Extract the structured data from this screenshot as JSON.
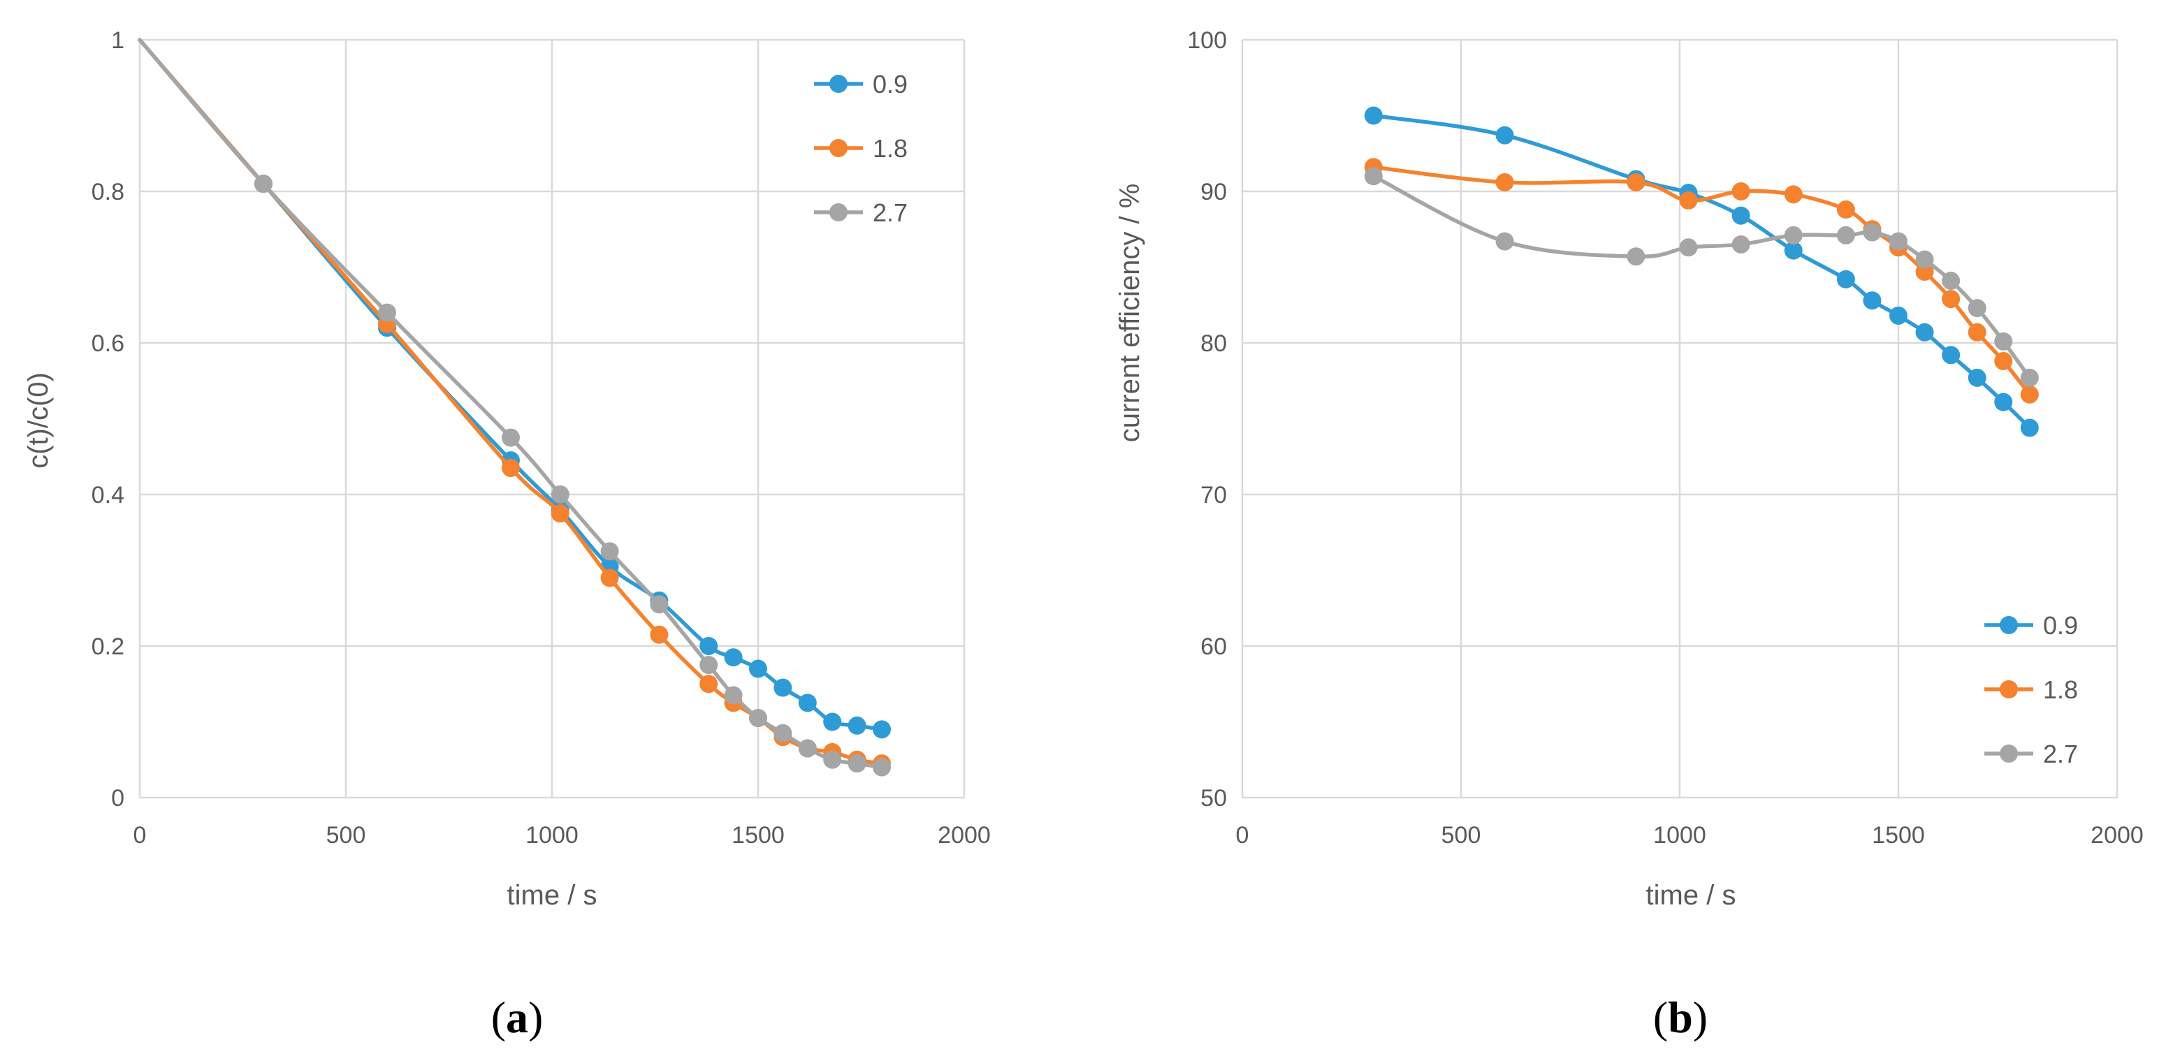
{
  "chart_data": [
    {
      "type": "line",
      "panel": "a",
      "caption": {
        "open": "(",
        "letter": "a",
        "close": ")"
      },
      "xlabel": "time / s",
      "ylabel": "c(t)/c(0)",
      "xlim": [
        0,
        2000
      ],
      "ylim": [
        0,
        1
      ],
      "xticks": [
        0,
        500,
        1000,
        1500,
        2000
      ],
      "yticks": [
        0,
        0.2,
        0.4,
        0.6,
        0.8,
        1
      ],
      "ytick_labels": [
        "0",
        "0.2",
        "0.4",
        "0.6",
        "0.8",
        "1"
      ],
      "grid": true,
      "legend_position": "top-right",
      "series": [
        {
          "name": "0.9",
          "color": "#2e9bd6",
          "x": [
            0,
            300,
            600,
            900,
            1020,
            1140,
            1260,
            1380,
            1440,
            1500,
            1560,
            1620,
            1680,
            1740,
            1800
          ],
          "y": [
            1,
            0.81,
            0.62,
            0.445,
            0.38,
            0.305,
            0.26,
            0.2,
            0.185,
            0.17,
            0.145,
            0.125,
            0.1,
            0.095,
            0.09
          ],
          "markers_from": 1
        },
        {
          "name": "1.8",
          "color": "#f5822e",
          "x": [
            0,
            300,
            600,
            900,
            1020,
            1140,
            1260,
            1380,
            1440,
            1500,
            1560,
            1620,
            1680,
            1740,
            1800
          ],
          "y": [
            1,
            0.81,
            0.625,
            0.435,
            0.375,
            0.29,
            0.215,
            0.15,
            0.125,
            0.105,
            0.08,
            0.065,
            0.06,
            0.05,
            0.045
          ],
          "markers_from": 1
        },
        {
          "name": "2.7",
          "color": "#a5a5a5",
          "x": [
            0,
            300,
            600,
            900,
            1020,
            1140,
            1260,
            1380,
            1440,
            1500,
            1560,
            1620,
            1680,
            1740,
            1800
          ],
          "y": [
            1,
            0.81,
            0.64,
            0.475,
            0.4,
            0.325,
            0.255,
            0.175,
            0.135,
            0.105,
            0.085,
            0.065,
            0.05,
            0.045,
            0.04
          ],
          "markers_from": 1
        }
      ]
    },
    {
      "type": "line",
      "panel": "b",
      "caption": {
        "open": "(",
        "letter": "b",
        "close": ")"
      },
      "xlabel": "time / s",
      "ylabel": "current efficiency / %",
      "xlim": [
        0,
        2000
      ],
      "ylim": [
        50,
        100
      ],
      "xticks": [
        0,
        500,
        1000,
        1500,
        2000
      ],
      "yticks": [
        50,
        60,
        70,
        80,
        90,
        100
      ],
      "ytick_labels": [
        "50",
        "60",
        "70",
        "80",
        "90",
        "100"
      ],
      "grid": true,
      "legend_position": "bottom-right",
      "series": [
        {
          "name": "0.9",
          "color": "#2e9bd6",
          "x": [
            300,
            600,
            900,
            1020,
            1140,
            1260,
            1380,
            1440,
            1500,
            1560,
            1620,
            1680,
            1740,
            1800
          ],
          "y": [
            95,
            93.7,
            90.8,
            89.9,
            88.4,
            86.1,
            84.2,
            82.8,
            81.8,
            80.7,
            79.2,
            77.7,
            76.1,
            74.4
          ],
          "markers_from": 0
        },
        {
          "name": "1.8",
          "color": "#f5822e",
          "x": [
            300,
            600,
            900,
            1020,
            1140,
            1260,
            1380,
            1440,
            1500,
            1560,
            1620,
            1680,
            1740,
            1800
          ],
          "y": [
            91.6,
            90.6,
            90.6,
            89.4,
            90,
            89.8,
            88.8,
            87.5,
            86.3,
            84.7,
            82.9,
            80.7,
            78.8,
            76.6
          ],
          "markers_from": 0
        },
        {
          "name": "2.7",
          "color": "#a5a5a5",
          "x": [
            300,
            600,
            900,
            1020,
            1140,
            1260,
            1380,
            1440,
            1500,
            1560,
            1620,
            1680,
            1740,
            1800
          ],
          "y": [
            91,
            86.7,
            85.7,
            86.3,
            86.5,
            87.1,
            87.1,
            87.3,
            86.7,
            85.5,
            84.1,
            82.3,
            80.1,
            77.7
          ],
          "markers_from": 0
        }
      ]
    }
  ]
}
